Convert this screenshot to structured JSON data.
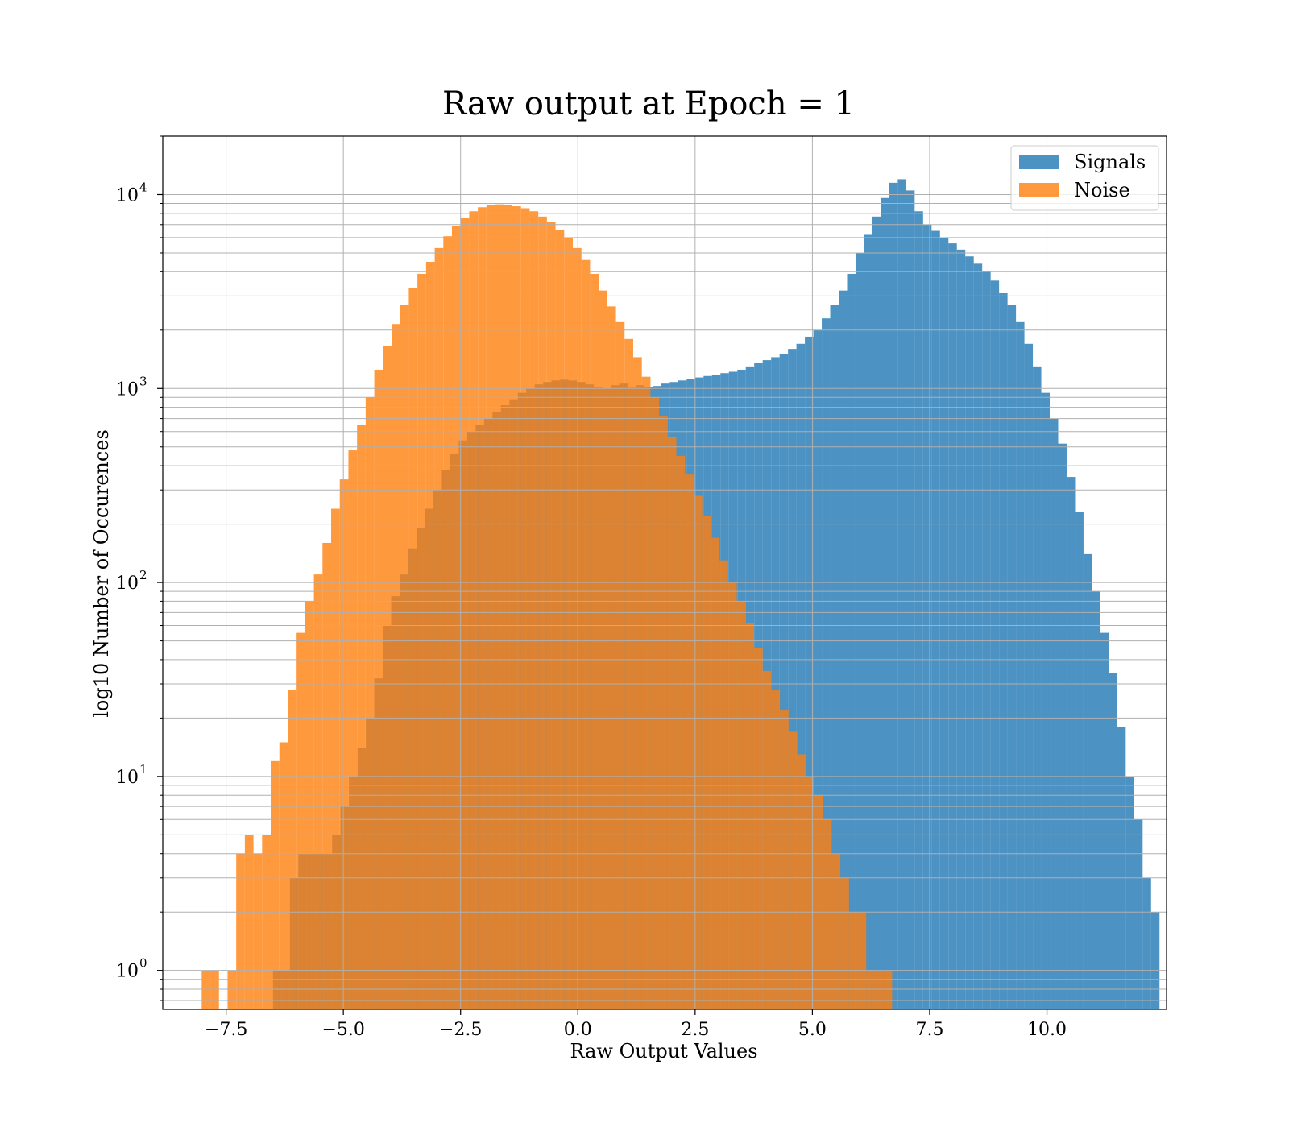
{
  "chart_data": {
    "type": "bar",
    "title": "Raw output at Epoch = 1",
    "xlabel": "Raw Output Values",
    "ylabel": "log10 Number of Occurences",
    "yscale": "log",
    "xlim": [
      -8.85,
      12.55
    ],
    "ylim": [
      0.63,
      20000
    ],
    "xticks": [
      -7.5,
      -5.0,
      -2.5,
      0.0,
      2.5,
      5.0,
      7.5,
      10.0
    ],
    "xtick_labels": [
      "−7.5",
      "−5.0",
      "−2.5",
      "0.0",
      "2.5",
      "5.0",
      "7.5",
      "10.0"
    ],
    "yticks": [
      {
        "value": 1,
        "base": "10",
        "exp": "0"
      },
      {
        "value": 10,
        "base": "10",
        "exp": "1"
      },
      {
        "value": 100,
        "base": "10",
        "exp": "2"
      },
      {
        "value": 1000,
        "base": "10",
        "exp": "3"
      },
      {
        "value": 10000,
        "base": "10",
        "exp": "4"
      }
    ],
    "grid": true,
    "legend_position": "top-right",
    "series": [
      {
        "name": "Signals",
        "color": "#1f77b4",
        "bin_start": -6.5,
        "bin_width": 0.18,
        "values": [
          1,
          1,
          3,
          4,
          4,
          4,
          4,
          5,
          7,
          10,
          14,
          20,
          32,
          60,
          85,
          110,
          150,
          190,
          240,
          300,
          380,
          460,
          540,
          600,
          650,
          700,
          760,
          820,
          880,
          950,
          1000,
          1050,
          1080,
          1100,
          1110,
          1100,
          1080,
          1050,
          1020,
          1000,
          1040,
          1060,
          1010,
          1040,
          1020,
          1030,
          1060,
          1080,
          1100,
          1120,
          1140,
          1160,
          1180,
          1200,
          1220,
          1250,
          1300,
          1350,
          1400,
          1450,
          1500,
          1600,
          1700,
          1850,
          2000,
          2300,
          2700,
          3200,
          3900,
          5000,
          6200,
          7700,
          9600,
          11500,
          12000,
          10500,
          8200,
          7000,
          6500,
          6000,
          5600,
          5200,
          4800,
          4400,
          4000,
          3600,
          3100,
          2700,
          2200,
          1700,
          1300,
          950,
          700,
          520,
          350,
          230,
          140,
          90,
          55,
          34,
          18,
          10,
          6,
          3,
          2
        ]
      },
      {
        "name": "Noise",
        "color": "#ff7f0e",
        "bin_start": -8.02,
        "bin_width": 0.184,
        "values": [
          1,
          1,
          0,
          1,
          4,
          5,
          4,
          5,
          12,
          15,
          28,
          55,
          80,
          110,
          160,
          240,
          340,
          480,
          650,
          900,
          1250,
          1650,
          2150,
          2700,
          3300,
          3900,
          4500,
          5300,
          6100,
          6900,
          7600,
          8200,
          8600,
          8800,
          8900,
          8800,
          8700,
          8500,
          8200,
          7700,
          7200,
          6600,
          6000,
          5300,
          4600,
          3900,
          3200,
          2650,
          2200,
          1800,
          1450,
          1150,
          900,
          720,
          560,
          450,
          360,
          280,
          220,
          170,
          130,
          100,
          80,
          62,
          46,
          35,
          28,
          22,
          17,
          13,
          10,
          8,
          6,
          4,
          3,
          2,
          2,
          1,
          1,
          1
        ]
      }
    ]
  }
}
